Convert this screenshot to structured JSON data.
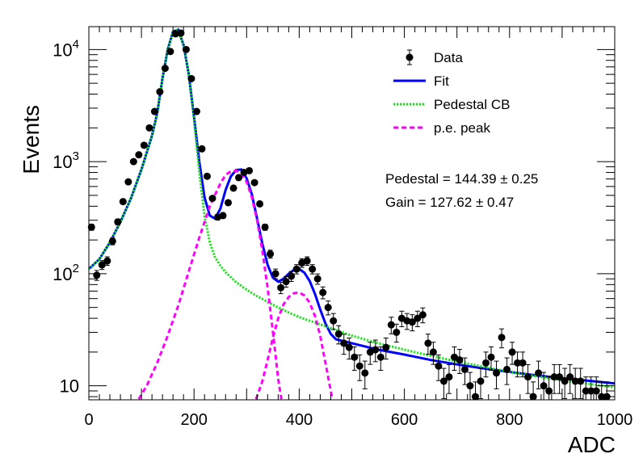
{
  "chart_data": {
    "type": "scatter",
    "xlabel": "ADC",
    "ylabel": "Events",
    "xlim": [
      0,
      1000
    ],
    "ylim": [
      7.5,
      16000
    ],
    "y_scale": "log",
    "grid": false,
    "legend_position": "top-right",
    "x_ticks": [
      {
        "value": 0,
        "label": "0"
      },
      {
        "value": 200,
        "label": "200"
      },
      {
        "value": 400,
        "label": "400"
      },
      {
        "value": 600,
        "label": "600"
      },
      {
        "value": 800,
        "label": "800"
      },
      {
        "value": 1000,
        "label": "1000"
      }
    ],
    "y_ticks": [
      {
        "value": 10,
        "base": "10",
        "exp": ""
      },
      {
        "value": 100,
        "base": "10",
        "exp": "2"
      },
      {
        "value": 1000,
        "base": "10",
        "exp": "3"
      },
      {
        "value": 10000,
        "base": "10",
        "exp": "4"
      }
    ],
    "legend": [
      {
        "label": "Data",
        "style": "marker",
        "color": "#000000"
      },
      {
        "label": "Fit",
        "style": "solid",
        "color": "#0000ff"
      },
      {
        "label": "Pedestal CB",
        "style": "dotted",
        "color": "#00ee00"
      },
      {
        "label": "p.e. peak",
        "style": "dashed",
        "color": "#ff00ff"
      }
    ],
    "annotations": [
      "Pedestal = 144.39 ± 0.25",
      "Gain = 127.62 ± 0.47"
    ],
    "series": [
      {
        "name": "Data",
        "color": "#000000",
        "points": [
          [
            5,
            260
          ],
          [
            15,
            97
          ],
          [
            25,
            120
          ],
          [
            35,
            130
          ],
          [
            45,
            195
          ],
          [
            55,
            290
          ],
          [
            65,
            440
          ],
          [
            75,
            660
          ],
          [
            85,
            1000
          ],
          [
            95,
            1150
          ],
          [
            105,
            1400
          ],
          [
            115,
            2000
          ],
          [
            125,
            2800
          ],
          [
            135,
            4200
          ],
          [
            145,
            6800
          ],
          [
            155,
            9600
          ],
          [
            165,
            13800
          ],
          [
            175,
            14000
          ],
          [
            185,
            10000
          ],
          [
            195,
            5500
          ],
          [
            205,
            2800
          ],
          [
            215,
            1300
          ],
          [
            225,
            740
          ],
          [
            235,
            470
          ],
          [
            245,
            320
          ],
          [
            255,
            330
          ],
          [
            265,
            430
          ],
          [
            275,
            580
          ],
          [
            285,
            720
          ],
          [
            295,
            800
          ],
          [
            305,
            830
          ],
          [
            315,
            650
          ],
          [
            325,
            420
          ],
          [
            335,
            260
          ],
          [
            345,
            150
          ],
          [
            355,
            100
          ],
          [
            365,
            75
          ],
          [
            375,
            85
          ],
          [
            385,
            95
          ],
          [
            395,
            110
          ],
          [
            405,
            125
          ],
          [
            415,
            130
          ],
          [
            425,
            110
          ],
          [
            435,
            90
          ],
          [
            445,
            68
          ],
          [
            455,
            50
          ],
          [
            465,
            38
          ],
          [
            475,
            29
          ],
          [
            485,
            24
          ],
          [
            495,
            22
          ],
          [
            505,
            18
          ],
          [
            515,
            15
          ],
          [
            525,
            13
          ],
          [
            535,
            20
          ],
          [
            545,
            21
          ],
          [
            555,
            18
          ],
          [
            565,
            22
          ],
          [
            575,
            35
          ],
          [
            585,
            30
          ],
          [
            595,
            40
          ],
          [
            605,
            38
          ],
          [
            615,
            37
          ],
          [
            625,
            40
          ],
          [
            635,
            43
          ],
          [
            645,
            24
          ],
          [
            655,
            20
          ],
          [
            665,
            15
          ],
          [
            675,
            11
          ],
          [
            685,
            12
          ],
          [
            695,
            18
          ],
          [
            705,
            17
          ],
          [
            715,
            14
          ],
          [
            725,
            10
          ],
          [
            735,
            8
          ],
          [
            745,
            11
          ],
          [
            755,
            16
          ],
          [
            765,
            18
          ],
          [
            775,
            13
          ],
          [
            785,
            27
          ],
          [
            795,
            14
          ],
          [
            805,
            20
          ],
          [
            815,
            16
          ],
          [
            825,
            16
          ],
          [
            835,
            12
          ],
          [
            845,
            8
          ],
          [
            855,
            13
          ],
          [
            865,
            10
          ],
          [
            875,
            9
          ],
          [
            885,
            12
          ],
          [
            895,
            12
          ],
          [
            905,
            11
          ],
          [
            915,
            12
          ],
          [
            925,
            11
          ],
          [
            935,
            11
          ],
          [
            945,
            9
          ],
          [
            955,
            9
          ],
          [
            965,
            9
          ],
          [
            975,
            8
          ],
          [
            985,
            8
          ]
        ]
      },
      {
        "name": "Fit",
        "color": "#0000ff",
        "points": [
          [
            0,
            110
          ],
          [
            20,
            135
          ],
          [
            40,
            190
          ],
          [
            60,
            290
          ],
          [
            80,
            470
          ],
          [
            100,
            850
          ],
          [
            120,
            1700
          ],
          [
            130,
            2700
          ],
          [
            140,
            5500
          ],
          [
            150,
            10000
          ],
          [
            160,
            14500
          ],
          [
            170,
            15000
          ],
          [
            180,
            11000
          ],
          [
            190,
            6000
          ],
          [
            200,
            2500
          ],
          [
            210,
            1000
          ],
          [
            220,
            480
          ],
          [
            230,
            330
          ],
          [
            240,
            310
          ],
          [
            250,
            380
          ],
          [
            260,
            560
          ],
          [
            270,
            740
          ],
          [
            280,
            840
          ],
          [
            290,
            850
          ],
          [
            300,
            710
          ],
          [
            310,
            510
          ],
          [
            320,
            310
          ],
          [
            330,
            185
          ],
          [
            340,
            120
          ],
          [
            350,
            92
          ],
          [
            360,
            85
          ],
          [
            370,
            90
          ],
          [
            380,
            100
          ],
          [
            390,
            108
          ],
          [
            400,
            110
          ],
          [
            410,
            102
          ],
          [
            420,
            86
          ],
          [
            430,
            66
          ],
          [
            440,
            48
          ],
          [
            450,
            36
          ],
          [
            460,
            29
          ],
          [
            470,
            26
          ],
          [
            500,
            24
          ],
          [
            550,
            21
          ],
          [
            600,
            19
          ],
          [
            650,
            17
          ],
          [
            700,
            15.5
          ],
          [
            750,
            14.3
          ],
          [
            800,
            13.3
          ],
          [
            850,
            12.4
          ],
          [
            900,
            11.7
          ],
          [
            950,
            11.1
          ],
          [
            1000,
            10.5
          ]
        ]
      },
      {
        "name": "Pedestal CB",
        "color": "#00ee00",
        "points": [
          [
            0,
            110
          ],
          [
            20,
            135
          ],
          [
            40,
            190
          ],
          [
            60,
            290
          ],
          [
            80,
            470
          ],
          [
            100,
            850
          ],
          [
            120,
            1700
          ],
          [
            130,
            2700
          ],
          [
            140,
            5500
          ],
          [
            150,
            10000
          ],
          [
            160,
            14500
          ],
          [
            170,
            15000
          ],
          [
            180,
            11000
          ],
          [
            190,
            6000
          ],
          [
            200,
            2400
          ],
          [
            210,
            800
          ],
          [
            220,
            330
          ],
          [
            230,
            190
          ],
          [
            240,
            140
          ],
          [
            250,
            118
          ],
          [
            260,
            103
          ],
          [
            270,
            93
          ],
          [
            280,
            84
          ],
          [
            290,
            78
          ],
          [
            300,
            72
          ],
          [
            320,
            63
          ],
          [
            340,
            56
          ],
          [
            360,
            50
          ],
          [
            380,
            45
          ],
          [
            400,
            41
          ],
          [
            450,
            34
          ],
          [
            500,
            28
          ],
          [
            550,
            24
          ],
          [
            600,
            21
          ],
          [
            650,
            18.5
          ],
          [
            700,
            16.5
          ],
          [
            750,
            14.8
          ],
          [
            800,
            13.3
          ],
          [
            850,
            12.2
          ],
          [
            900,
            11.2
          ],
          [
            950,
            10.4
          ],
          [
            1000,
            9.7
          ]
        ]
      },
      {
        "name": "p.e. peak",
        "color": "#ff00ff",
        "points": [
          [
            95,
            7.6
          ],
          [
            110,
            10
          ],
          [
            130,
            16
          ],
          [
            150,
            28
          ],
          [
            170,
            52
          ],
          [
            190,
            105
          ],
          [
            210,
            210
          ],
          [
            230,
            400
          ],
          [
            250,
            640
          ],
          [
            260,
            760
          ],
          [
            270,
            820
          ],
          [
            280,
            830
          ],
          [
            290,
            780
          ],
          [
            300,
            660
          ],
          [
            310,
            480
          ],
          [
            320,
            300
          ],
          [
            330,
            160
          ],
          [
            340,
            75
          ],
          [
            350,
            30
          ],
          [
            360,
            11.5
          ],
          [
            366,
            7.6
          ]
        ]
      },
      {
        "name": "p.e. peak",
        "color": "#ff00ff",
        "points": [
          [
            318,
            7.6
          ],
          [
            330,
            11
          ],
          [
            340,
            17
          ],
          [
            350,
            27
          ],
          [
            360,
            40
          ],
          [
            370,
            53
          ],
          [
            380,
            62
          ],
          [
            390,
            67
          ],
          [
            400,
            68
          ],
          [
            410,
            64
          ],
          [
            420,
            55
          ],
          [
            430,
            42
          ],
          [
            440,
            28
          ],
          [
            450,
            16
          ],
          [
            460,
            9
          ],
          [
            463,
            7.6
          ]
        ]
      }
    ]
  }
}
